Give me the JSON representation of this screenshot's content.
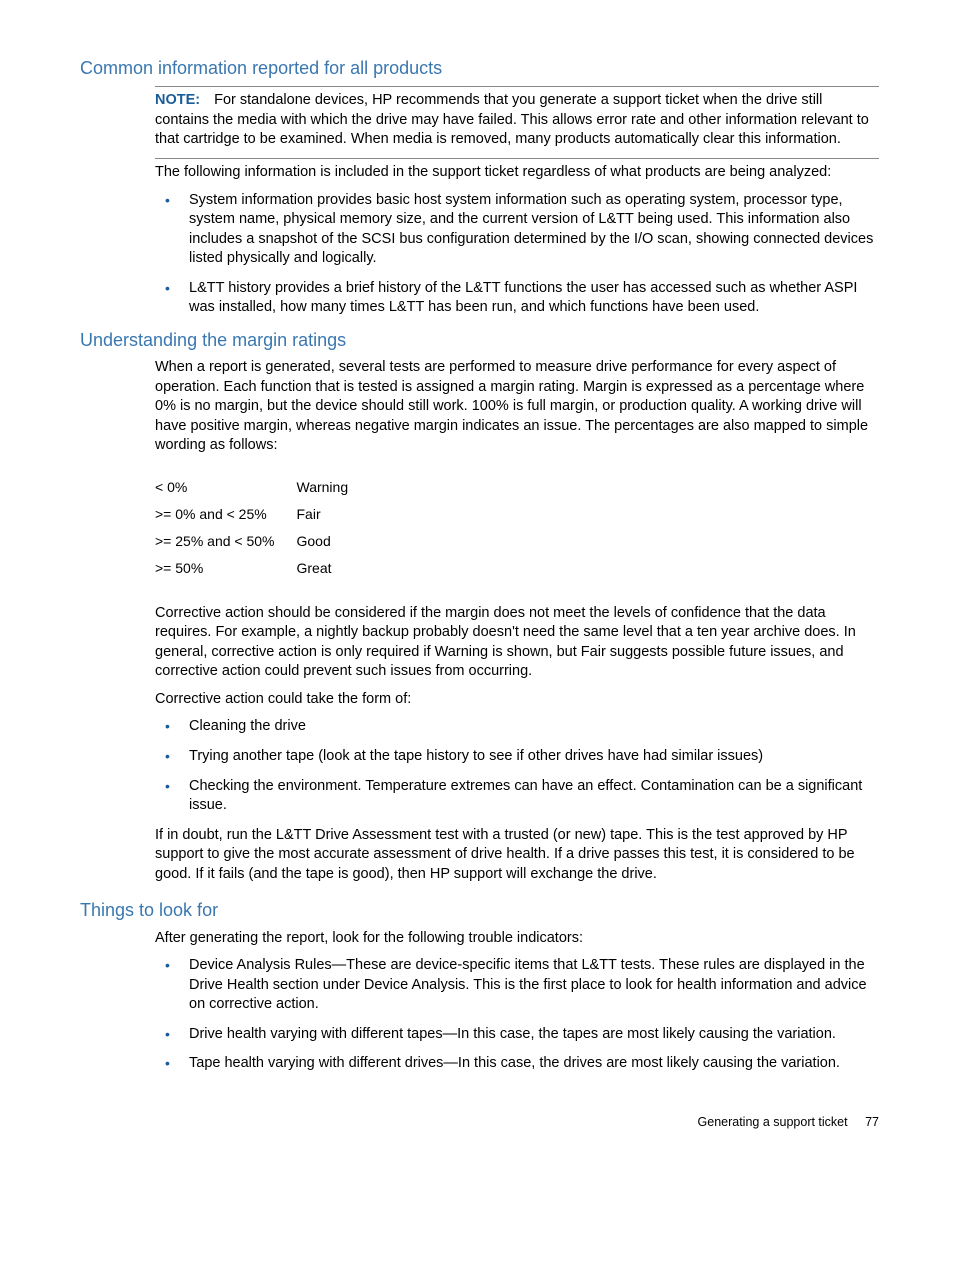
{
  "colors": {
    "heading": "#3a77b0",
    "note_label": "#1a5b9a",
    "bullet": "#1a5b9a",
    "text": "#000000",
    "rule": "#888888"
  },
  "section1": {
    "heading": "Common information reported for all products",
    "note_label": "NOTE:",
    "note_body": "For standalone devices, HP recommends that you generate a support ticket when the drive still contains the media with which the drive may have failed. This allows error rate and other information relevant to that cartridge to be examined. When media is removed, many products automatically clear this information.",
    "intro": "The following information is included in the support ticket regardless of what products are being analyzed:",
    "bullets": [
      "System information provides basic host system information such as operating system, processor type, system name, physical memory size, and the current version of L&TT being used. This information also includes a snapshot of the SCSI bus configuration determined by the I/O scan, showing connected devices listed physically and logically.",
      "L&TT history provides a brief history of the L&TT functions the user has accessed such as whether ASPI was installed, how many times L&TT has been run, and which functions have been used."
    ]
  },
  "section2": {
    "heading": "Understanding the margin ratings",
    "para1": "When a report is generated, several tests are performed to measure drive performance for every aspect of operation. Each function that is tested is assigned a margin rating. Margin is expressed as a percentage where 0% is no margin, but the device should still work. 100% is full margin, or production quality. A working drive will have positive margin, whereas negative margin indicates an issue. The percentages are also mapped to simple wording as follows:",
    "table": {
      "rows": [
        {
          "range": "< 0%",
          "label": "Warning"
        },
        {
          "range": ">= 0% and < 25%",
          "label": "Fair"
        },
        {
          "range": ">= 25% and < 50%",
          "label": "Good"
        },
        {
          "range": ">= 50%",
          "label": "Great"
        }
      ]
    },
    "para2": "Corrective action should be considered if the margin does not meet the levels of confidence that the data requires. For example, a nightly backup probably doesn't need the same level that a ten year archive does. In general, corrective action is only required if Warning is shown, but Fair suggests possible future issues, and corrective action could prevent such issues from occurring.",
    "para3": "Corrective action could take the form of:",
    "bullets": [
      "Cleaning the drive",
      "Trying another tape (look at the tape history to see if other drives have had similar issues)",
      "Checking the environment. Temperature extremes can have an effect. Contamination can be a significant issue."
    ],
    "para4": "If in doubt, run the L&TT Drive Assessment test with a trusted (or new) tape. This is the test approved by HP support to give the most accurate assessment of drive health. If a drive passes this test, it is considered to be good. If it fails (and the tape is good), then HP support will exchange the drive."
  },
  "section3": {
    "heading": "Things to look for",
    "intro": "After generating the report, look for the following trouble indicators:",
    "bullets": [
      "Device Analysis Rules—These are device-specific items that L&TT tests. These rules are displayed in the Drive Health section under Device Analysis. This is the first place to look for health information and advice on corrective action.",
      "Drive health varying with different tapes—In this case, the tapes are most likely causing the variation.",
      "Tape health varying with different drives—In this case, the drives are most likely causing the variation."
    ]
  },
  "footer": {
    "title": "Generating a support ticket",
    "page": "77"
  }
}
